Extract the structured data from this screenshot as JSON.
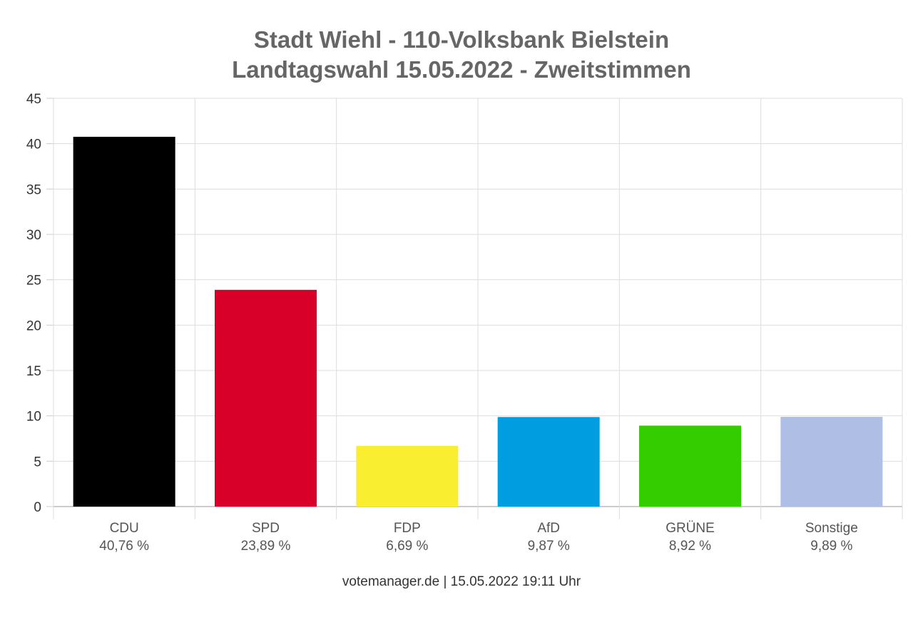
{
  "chart_data": {
    "type": "bar",
    "title": "Stadt Wiehl - 110-Volksbank Bielstein",
    "subtitle": "Landtagswahl 15.05.2022  - Zweitstimmen",
    "categories": [
      "CDU",
      "SPD",
      "FDP",
      "AfD",
      "GRÜNE",
      "Sonstige"
    ],
    "values": [
      40.76,
      23.89,
      6.69,
      9.87,
      8.92,
      9.89
    ],
    "value_labels": [
      "40,76 %",
      "23,89 %",
      "6,69 %",
      "9,87 %",
      "8,92 %",
      "9,89 %"
    ],
    "colors": [
      "#000000",
      "#d80029",
      "#f9ee30",
      "#009ee0",
      "#34cd00",
      "#aebee4"
    ],
    "ylim": [
      0,
      45
    ],
    "yticks": [
      0,
      5,
      10,
      15,
      20,
      25,
      30,
      35,
      40,
      45
    ],
    "grid": true,
    "xlabel": "",
    "ylabel": ""
  },
  "footer": "votemanager.de | 15.05.2022 19:11 Uhr"
}
